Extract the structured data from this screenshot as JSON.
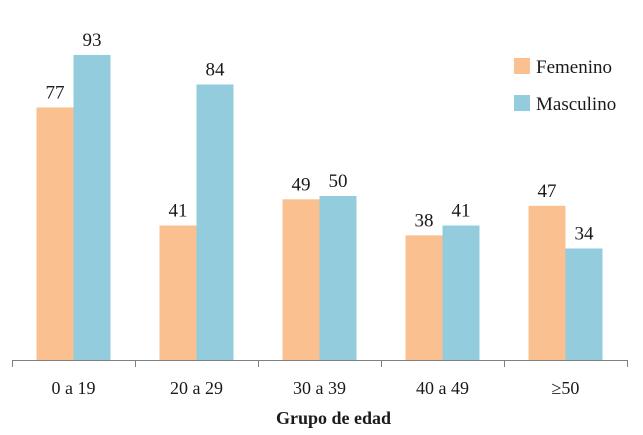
{
  "chart_data": {
    "type": "bar",
    "categories": [
      "0 a 19",
      "20 a 29",
      "30 a 39",
      "40 a 49",
      "≥50"
    ],
    "series": [
      {
        "name": "Femenino",
        "values": [
          77,
          41,
          49,
          38,
          47
        ],
        "color": "#FAC090"
      },
      {
        "name": "Masculino",
        "values": [
          93,
          84,
          50,
          41,
          34
        ],
        "color": "#93CDDD"
      }
    ],
    "xlabel": "Grupo de edad",
    "ylabel": "",
    "ylim": [
      0,
      100
    ],
    "grid": false,
    "legend_position": "top-right",
    "show_data_labels": true
  }
}
